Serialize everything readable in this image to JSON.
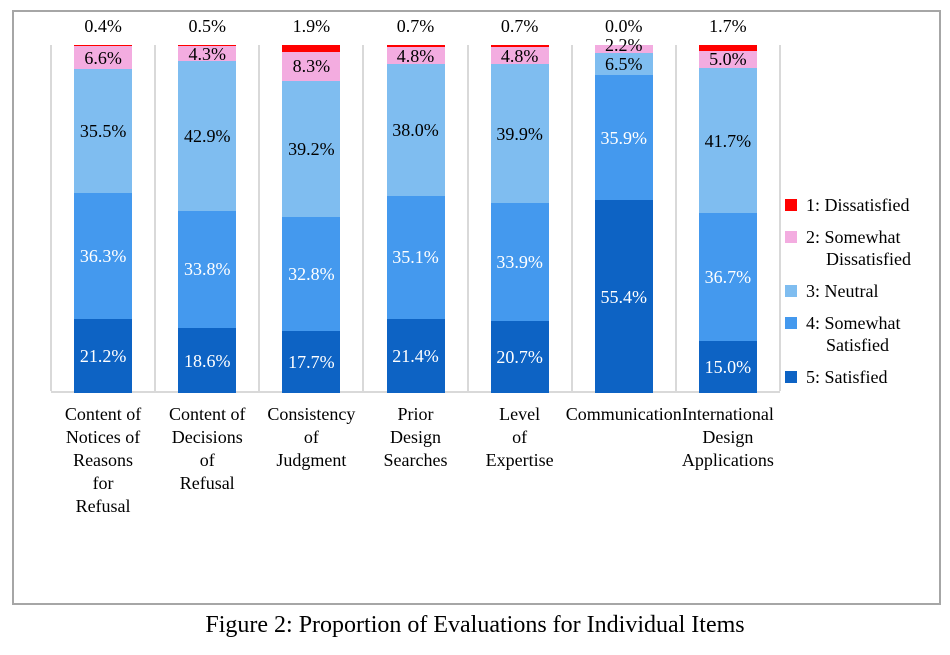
{
  "caption": "Figure 2: Proportion of Evaluations for Individual Items",
  "chart_data": {
    "type": "bar",
    "stacked": true,
    "orientation": "vertical",
    "unit": "%",
    "ylim": [
      0,
      100
    ],
    "grid": "category-separators",
    "categories": [
      "Content of Notices of Reasons for Refusal",
      "Content of Decisions of Refusal",
      "Consistency of Judgment",
      "Prior Design Searches",
      "Level of Expertise",
      "Communication",
      "International Design Applications"
    ],
    "category_label_lines": [
      [
        "Content of",
        "Notices of",
        "Reasons",
        "for",
        "Refusal"
      ],
      [
        "Content of",
        "Decisions",
        "of",
        "Refusal"
      ],
      [
        "Consistency",
        "of",
        "Judgment"
      ],
      [
        "Prior",
        "Design",
        "Searches"
      ],
      [
        "Level",
        "of",
        "Expertise"
      ],
      [
        "Communication"
      ],
      [
        "International",
        "Design",
        "Applications"
      ]
    ],
    "series": [
      {
        "name": "1: Dissatisfied",
        "color": "#FF0000",
        "label_text": "black",
        "values": [
          0.4,
          0.5,
          1.9,
          0.7,
          0.7,
          0.0,
          1.7
        ]
      },
      {
        "name": "2: Somewhat Dissatisfied",
        "color": "#F3ACE0",
        "label_text": "black",
        "values": [
          6.6,
          4.3,
          8.3,
          4.8,
          4.8,
          2.2,
          5.0
        ]
      },
      {
        "name": "3: Neutral",
        "color": "#7FBDF0",
        "label_text": "black",
        "values": [
          35.5,
          42.9,
          39.2,
          38.0,
          39.9,
          6.5,
          41.7
        ]
      },
      {
        "name": "4: Somewhat Satisfied",
        "color": "#4499EE",
        "label_text": "white",
        "values": [
          36.3,
          33.8,
          32.8,
          35.1,
          33.9,
          35.9,
          36.7
        ]
      },
      {
        "name": "5: Satisfied",
        "color": "#0D63C4",
        "label_text": "white",
        "values": [
          21.2,
          18.6,
          17.7,
          21.4,
          20.7,
          55.4,
          15.0
        ]
      }
    ],
    "legend": {
      "position": "right",
      "entries": [
        {
          "color": "#FF0000",
          "lines": [
            "1: Dissatisfied"
          ]
        },
        {
          "color": "#F3ACE0",
          "lines": [
            "2: Somewhat",
            "Dissatisfied"
          ]
        },
        {
          "color": "#7FBDF0",
          "lines": [
            "3: Neutral"
          ]
        },
        {
          "color": "#4499EE",
          "lines": [
            "4: Somewhat",
            "Satisfied"
          ]
        },
        {
          "color": "#0D63C4",
          "lines": [
            "5: Satisfied"
          ]
        }
      ]
    }
  }
}
